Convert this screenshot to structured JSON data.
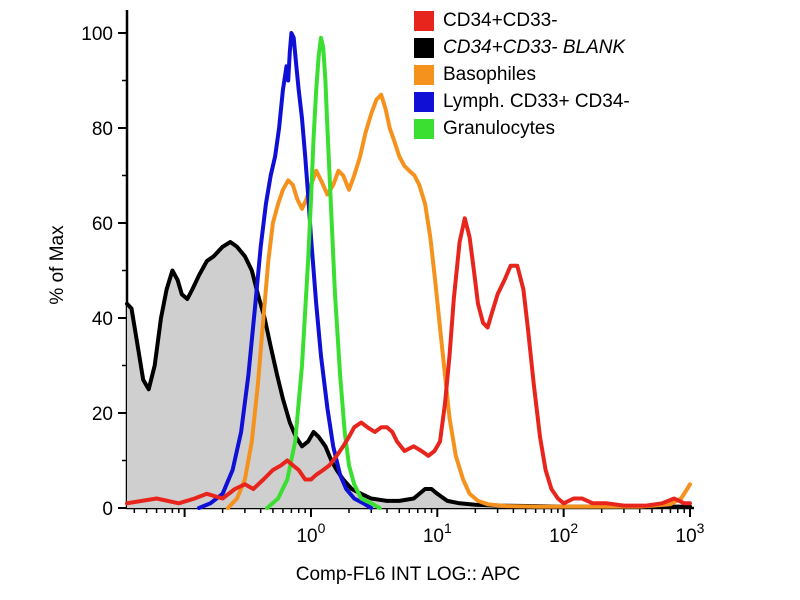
{
  "chart_data": {
    "type": "line",
    "title": "",
    "xlabel": "Comp-FL6 INT LOG:: APC",
    "ylabel": "% of Max",
    "x_scale": "log",
    "xlim": [
      0.035,
      1000
    ],
    "ylim": [
      0,
      100
    ],
    "grid": false,
    "legend_position": "top-right",
    "y_major_ticks": [
      0,
      20,
      40,
      60,
      80,
      100
    ],
    "y_minor_ticks": [
      10,
      30,
      50,
      70,
      90
    ],
    "x_major_ticks": [
      {
        "value": 0.1,
        "base": null,
        "exp": null
      },
      {
        "value": 1,
        "base": "10",
        "exp": "0"
      },
      {
        "value": 10,
        "base": "10",
        "exp": "1"
      },
      {
        "value": 100,
        "base": "10",
        "exp": "2"
      },
      {
        "value": 1000,
        "base": "10",
        "exp": "3"
      }
    ],
    "series": [
      {
        "id": "cd34",
        "name": "CD34+CD33-",
        "color": "#e8251d",
        "fill": null,
        "italic": false,
        "z": 5,
        "points": [
          [
            0.035,
            1
          ],
          [
            0.06,
            2
          ],
          [
            0.09,
            1
          ],
          [
            0.12,
            2
          ],
          [
            0.15,
            3
          ],
          [
            0.2,
            2
          ],
          [
            0.25,
            4
          ],
          [
            0.3,
            5
          ],
          [
            0.35,
            4
          ],
          [
            0.42,
            6
          ],
          [
            0.5,
            8
          ],
          [
            0.58,
            9
          ],
          [
            0.65,
            10
          ],
          [
            0.72,
            9
          ],
          [
            0.8,
            8
          ],
          [
            0.9,
            6
          ],
          [
            1.0,
            6
          ],
          [
            1.1,
            7
          ],
          [
            1.25,
            8
          ],
          [
            1.4,
            9
          ],
          [
            1.6,
            11
          ],
          [
            1.8,
            13
          ],
          [
            2.0,
            15
          ],
          [
            2.2,
            17
          ],
          [
            2.5,
            18
          ],
          [
            2.8,
            17
          ],
          [
            3.2,
            16
          ],
          [
            3.6,
            17
          ],
          [
            4.0,
            17
          ],
          [
            4.4,
            16
          ],
          [
            4.8,
            14
          ],
          [
            5.5,
            12
          ],
          [
            6.5,
            13
          ],
          [
            7.5,
            12
          ],
          [
            8.5,
            11
          ],
          [
            9.5,
            12
          ],
          [
            10.5,
            14
          ],
          [
            11.5,
            22
          ],
          [
            12.5,
            32
          ],
          [
            13.5,
            44
          ],
          [
            15,
            56
          ],
          [
            16.5,
            61
          ],
          [
            18,
            57
          ],
          [
            19.5,
            50
          ],
          [
            21,
            43
          ],
          [
            23,
            39
          ],
          [
            25,
            38
          ],
          [
            27,
            41
          ],
          [
            30,
            45
          ],
          [
            34,
            48
          ],
          [
            38,
            51
          ],
          [
            43,
            51
          ],
          [
            48,
            46
          ],
          [
            52,
            38
          ],
          [
            58,
            26
          ],
          [
            65,
            15
          ],
          [
            72,
            8
          ],
          [
            80,
            4
          ],
          [
            90,
            2
          ],
          [
            100,
            1
          ],
          [
            120,
            2
          ],
          [
            140,
            2
          ],
          [
            170,
            1
          ],
          [
            220,
            1
          ],
          [
            300,
            0.5
          ],
          [
            450,
            0.5
          ],
          [
            600,
            1
          ],
          [
            750,
            2
          ],
          [
            900,
            1
          ],
          [
            1000,
            1
          ]
        ]
      },
      {
        "id": "blank",
        "name": "CD34+CD33- BLANK",
        "color": "#000000",
        "fill": "#cfcfcf",
        "italic": true,
        "z": 1,
        "points": [
          [
            0.035,
            43
          ],
          [
            0.038,
            42
          ],
          [
            0.042,
            35
          ],
          [
            0.047,
            27
          ],
          [
            0.052,
            25
          ],
          [
            0.058,
            30
          ],
          [
            0.065,
            40
          ],
          [
            0.072,
            46
          ],
          [
            0.08,
            50
          ],
          [
            0.088,
            48
          ],
          [
            0.095,
            45
          ],
          [
            0.105,
            44
          ],
          [
            0.115,
            46
          ],
          [
            0.13,
            49
          ],
          [
            0.15,
            52
          ],
          [
            0.17,
            53
          ],
          [
            0.2,
            55
          ],
          [
            0.23,
            56
          ],
          [
            0.26,
            55
          ],
          [
            0.3,
            53
          ],
          [
            0.34,
            50
          ],
          [
            0.38,
            45
          ],
          [
            0.43,
            40
          ],
          [
            0.48,
            34
          ],
          [
            0.54,
            28
          ],
          [
            0.6,
            23
          ],
          [
            0.68,
            18
          ],
          [
            0.76,
            15
          ],
          [
            0.85,
            13
          ],
          [
            0.95,
            14
          ],
          [
            1.05,
            16
          ],
          [
            1.15,
            15
          ],
          [
            1.3,
            13
          ],
          [
            1.45,
            10
          ],
          [
            1.6,
            8
          ],
          [
            1.8,
            6
          ],
          [
            2.1,
            4
          ],
          [
            2.5,
            3
          ],
          [
            3.0,
            2
          ],
          [
            4.0,
            1.5
          ],
          [
            5.0,
            1.5
          ],
          [
            6.5,
            2
          ],
          [
            8,
            4
          ],
          [
            9,
            4
          ],
          [
            10,
            3
          ],
          [
            12,
            1.5
          ],
          [
            15,
            1
          ],
          [
            20,
            0.7
          ],
          [
            30,
            0.5
          ],
          [
            60,
            0.4
          ],
          [
            100,
            0.3
          ],
          [
            300,
            0.3
          ],
          [
            600,
            0.3
          ],
          [
            1000,
            0.3
          ]
        ]
      },
      {
        "id": "baso",
        "name": "Basophiles",
        "color": "#f5921e",
        "fill": null,
        "italic": false,
        "z": 2,
        "points": [
          [
            0.22,
            0
          ],
          [
            0.26,
            2
          ],
          [
            0.3,
            6
          ],
          [
            0.34,
            14
          ],
          [
            0.38,
            26
          ],
          [
            0.42,
            40
          ],
          [
            0.46,
            52
          ],
          [
            0.5,
            60
          ],
          [
            0.55,
            64
          ],
          [
            0.6,
            67
          ],
          [
            0.66,
            69
          ],
          [
            0.72,
            68
          ],
          [
            0.78,
            65
          ],
          [
            0.85,
            63
          ],
          [
            0.92,
            65
          ],
          [
            1.0,
            68
          ],
          [
            1.1,
            71
          ],
          [
            1.2,
            69
          ],
          [
            1.35,
            66
          ],
          [
            1.5,
            68
          ],
          [
            1.65,
            71
          ],
          [
            1.8,
            70
          ],
          [
            2.0,
            67
          ],
          [
            2.2,
            70
          ],
          [
            2.45,
            74
          ],
          [
            2.7,
            79
          ],
          [
            3.0,
            83
          ],
          [
            3.3,
            86
          ],
          [
            3.6,
            87
          ],
          [
            3.9,
            84
          ],
          [
            4.2,
            80
          ],
          [
            4.6,
            77
          ],
          [
            5.0,
            74
          ],
          [
            5.5,
            72
          ],
          [
            6.0,
            71
          ],
          [
            6.6,
            70
          ],
          [
            7.2,
            68
          ],
          [
            8.0,
            64
          ],
          [
            8.8,
            57
          ],
          [
            9.6,
            48
          ],
          [
            10.5,
            38
          ],
          [
            11.5,
            28
          ],
          [
            12.5,
            19
          ],
          [
            14,
            11
          ],
          [
            16,
            6
          ],
          [
            18,
            3
          ],
          [
            21,
            1.5
          ],
          [
            25,
            0.8
          ],
          [
            35,
            0.4
          ],
          [
            60,
            0.3
          ],
          [
            150,
            0.3
          ],
          [
            400,
            0.3
          ],
          [
            700,
            0.8
          ],
          [
            850,
            2
          ],
          [
            950,
            4
          ],
          [
            1000,
            5
          ]
        ]
      },
      {
        "id": "lymph",
        "name": "Lymph. CD33+ CD34-",
        "color": "#0f0fd6",
        "fill": null,
        "italic": false,
        "z": 3,
        "points": [
          [
            0.13,
            0
          ],
          [
            0.16,
            1
          ],
          [
            0.2,
            3
          ],
          [
            0.24,
            8
          ],
          [
            0.28,
            16
          ],
          [
            0.32,
            28
          ],
          [
            0.36,
            42
          ],
          [
            0.4,
            55
          ],
          [
            0.44,
            64
          ],
          [
            0.48,
            70
          ],
          [
            0.52,
            74
          ],
          [
            0.56,
            80
          ],
          [
            0.6,
            88
          ],
          [
            0.64,
            93
          ],
          [
            0.66,
            90
          ],
          [
            0.68,
            96
          ],
          [
            0.7,
            100
          ],
          [
            0.73,
            99
          ],
          [
            0.76,
            94
          ],
          [
            0.8,
            88
          ],
          [
            0.85,
            82
          ],
          [
            0.9,
            74
          ],
          [
            0.95,
            66
          ],
          [
            1.0,
            57
          ],
          [
            1.1,
            43
          ],
          [
            1.2,
            32
          ],
          [
            1.35,
            21
          ],
          [
            1.5,
            13
          ],
          [
            1.7,
            7
          ],
          [
            1.9,
            4
          ],
          [
            2.2,
            2
          ],
          [
            2.6,
            1
          ],
          [
            3.0,
            0
          ]
        ]
      },
      {
        "id": "gran",
        "name": "Granulocytes",
        "color": "#3bdf31",
        "fill": null,
        "italic": false,
        "z": 4,
        "points": [
          [
            0.45,
            0
          ],
          [
            0.55,
            2
          ],
          [
            0.65,
            6
          ],
          [
            0.75,
            14
          ],
          [
            0.85,
            30
          ],
          [
            0.95,
            52
          ],
          [
            1.0,
            65
          ],
          [
            1.05,
            78
          ],
          [
            1.1,
            88
          ],
          [
            1.15,
            95
          ],
          [
            1.2,
            99
          ],
          [
            1.25,
            97
          ],
          [
            1.3,
            90
          ],
          [
            1.35,
            80
          ],
          [
            1.45,
            62
          ],
          [
            1.55,
            45
          ],
          [
            1.7,
            28
          ],
          [
            1.85,
            16
          ],
          [
            2.0,
            9
          ],
          [
            2.2,
            5
          ],
          [
            2.5,
            2
          ],
          [
            3.0,
            1
          ],
          [
            3.5,
            0
          ]
        ]
      }
    ]
  }
}
